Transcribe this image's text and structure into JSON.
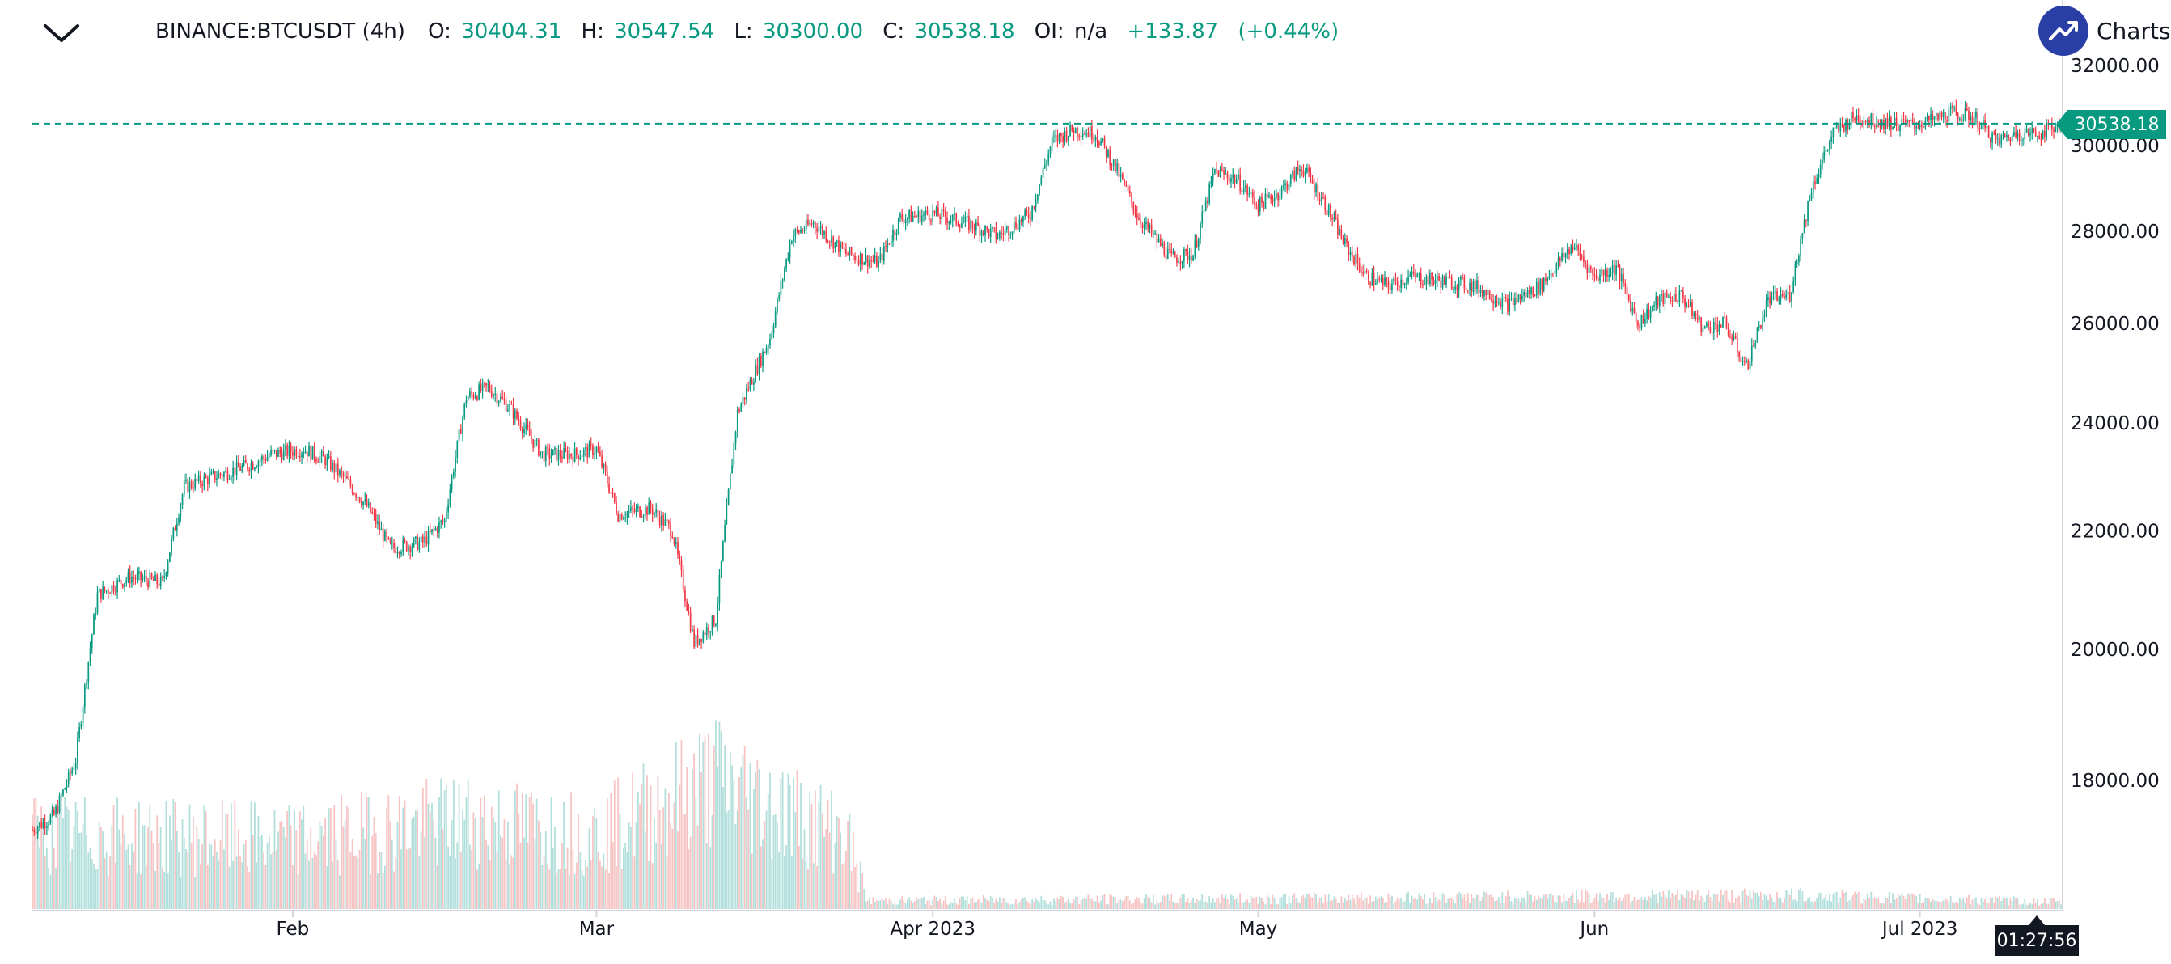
{
  "header": {
    "symbol": "BINANCE:BTCUSDT (4h)",
    "o_label": "O:",
    "o_value": "30404.31",
    "h_label": "H:",
    "h_value": "30547.54",
    "l_label": "L:",
    "l_value": "30300.00",
    "c_label": "C:",
    "c_value": "30538.18",
    "oi_label": "OI:",
    "oi_value": "n/a",
    "change": "+133.87",
    "change_pct": "(+0.44%)"
  },
  "brand": {
    "label": "Charts b"
  },
  "last_price_label": "30538.18",
  "countdown": "01:27:56",
  "colors": {
    "up": "#089981",
    "down": "#f23645",
    "vol_up": "#b2dfdb",
    "vol_down": "#f7c3c3",
    "price_line": "#089981",
    "axis_text": "#131722"
  },
  "chart_data": {
    "type": "candlestick",
    "symbol": "BINANCE:BTCUSDT",
    "interval": "4h",
    "y_axis": {
      "scale": "log",
      "range": [
        16900,
        32500
      ],
      "ticks": [
        "18000.00",
        "20000.00",
        "22000.00",
        "24000.00",
        "26000.00",
        "28000.00",
        "30000.00",
        "32000.00"
      ]
    },
    "x_axis": {
      "range": [
        "2023-01-08",
        "2023-07-14"
      ],
      "ticks": [
        {
          "label": "Feb",
          "date": "2023-02-01"
        },
        {
          "label": "Mar",
          "date": "2023-03-01"
        },
        {
          "label": "Apr 2023",
          "date": "2023-04-01"
        },
        {
          "label": "May",
          "date": "2023-05-01"
        },
        {
          "label": "Jun",
          "date": "2023-06-01"
        },
        {
          "label": "Jul 2023",
          "date": "2023-07-01"
        }
      ]
    },
    "last_price": 30538.18,
    "series_close": [
      [
        "2023-01-08",
        17300
      ],
      [
        "2023-01-10",
        17500
      ],
      [
        "2023-01-12",
        18300
      ],
      [
        "2023-01-14",
        20900
      ],
      [
        "2023-01-17",
        21200
      ],
      [
        "2023-01-20",
        21100
      ],
      [
        "2023-01-22",
        22800
      ],
      [
        "2023-01-25",
        23000
      ],
      [
        "2023-01-28",
        23200
      ],
      [
        "2023-01-30",
        23400
      ],
      [
        "2023-02-02",
        23500
      ],
      [
        "2023-02-04",
        23300
      ],
      [
        "2023-02-06",
        22900
      ],
      [
        "2023-02-08",
        22400
      ],
      [
        "2023-02-10",
        21700
      ],
      [
        "2023-02-13",
        21800
      ],
      [
        "2023-02-15",
        22200
      ],
      [
        "2023-02-17",
        24500
      ],
      [
        "2023-02-19",
        24700
      ],
      [
        "2023-02-21",
        24300
      ],
      [
        "2023-02-24",
        23400
      ],
      [
        "2023-02-27",
        23400
      ],
      [
        "2023-03-01",
        23500
      ],
      [
        "2023-03-03",
        22300
      ],
      [
        "2023-03-06",
        22400
      ],
      [
        "2023-03-08",
        22000
      ],
      [
        "2023-03-10",
        20100
      ],
      [
        "2023-03-12",
        20500
      ],
      [
        "2023-03-14",
        24200
      ],
      [
        "2023-03-17",
        25700
      ],
      [
        "2023-03-19",
        27900
      ],
      [
        "2023-03-21",
        28200
      ],
      [
        "2023-03-24",
        27500
      ],
      [
        "2023-03-27",
        27300
      ],
      [
        "2023-03-29",
        28300
      ],
      [
        "2023-04-01",
        28400
      ],
      [
        "2023-04-04",
        28200
      ],
      [
        "2023-04-07",
        27900
      ],
      [
        "2023-04-10",
        28400
      ],
      [
        "2023-04-12",
        30100
      ],
      [
        "2023-04-14",
        30400
      ],
      [
        "2023-04-16",
        30300
      ],
      [
        "2023-04-18",
        29400
      ],
      [
        "2023-04-20",
        28300
      ],
      [
        "2023-04-23",
        27400
      ],
      [
        "2023-04-25",
        27500
      ],
      [
        "2023-04-27",
        29400
      ],
      [
        "2023-04-29",
        29200
      ],
      [
        "2023-05-01",
        28600
      ],
      [
        "2023-05-03",
        28900
      ],
      [
        "2023-05-05",
        29500
      ],
      [
        "2023-05-07",
        28700
      ],
      [
        "2023-05-09",
        27700
      ],
      [
        "2023-05-11",
        27000
      ],
      [
        "2023-05-13",
        26800
      ],
      [
        "2023-05-15",
        27000
      ],
      [
        "2023-05-18",
        26900
      ],
      [
        "2023-05-21",
        26800
      ],
      [
        "2023-05-24",
        26400
      ],
      [
        "2023-05-27",
        26800
      ],
      [
        "2023-05-30",
        27700
      ],
      [
        "2023-06-01",
        27000
      ],
      [
        "2023-06-03",
        27200
      ],
      [
        "2023-06-05",
        26000
      ],
      [
        "2023-06-07",
        26500
      ],
      [
        "2023-06-09",
        26600
      ],
      [
        "2023-06-11",
        25900
      ],
      [
        "2023-06-13",
        26000
      ],
      [
        "2023-06-15",
        25100
      ],
      [
        "2023-06-17",
        26500
      ],
      [
        "2023-06-19",
        26600
      ],
      [
        "2023-06-21",
        29000
      ],
      [
        "2023-06-23",
        30300
      ],
      [
        "2023-06-25",
        30700
      ],
      [
        "2023-06-27",
        30600
      ],
      [
        "2023-06-30",
        30500
      ],
      [
        "2023-07-02",
        30600
      ],
      [
        "2023-07-04",
        30800
      ],
      [
        "2023-07-06",
        30700
      ],
      [
        "2023-07-08",
        30100
      ],
      [
        "2023-07-10",
        30300
      ],
      [
        "2023-07-12",
        30300
      ],
      [
        "2023-07-14",
        30538.18
      ]
    ],
    "volume_profile": [
      [
        "2023-01-08",
        0.55
      ],
      [
        "2023-02-01",
        0.5
      ],
      [
        "2023-02-17",
        0.65
      ],
      [
        "2023-03-01",
        0.55
      ],
      [
        "2023-03-12",
        0.95
      ],
      [
        "2023-03-19",
        0.7
      ],
      [
        "2023-03-24",
        0.55
      ],
      [
        "2023-03-26",
        0.06
      ],
      [
        "2023-06-20",
        0.1
      ],
      [
        "2023-07-14",
        0.05
      ]
    ]
  }
}
